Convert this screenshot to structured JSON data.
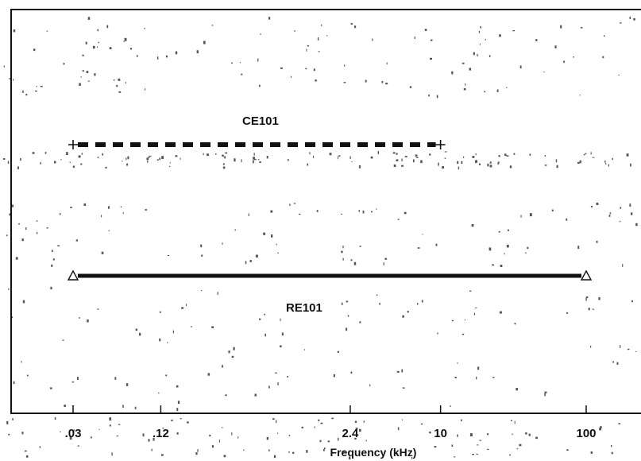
{
  "chart_data": {
    "type": "line",
    "xlabel": "Frequency (kHz)",
    "ylabel": "",
    "xscale": "log",
    "xlim": [
      0.03,
      100
    ],
    "x_ticks": [
      {
        "value": 0.03,
        "label": ".03"
      },
      {
        "value": 0.12,
        "label": ".12"
      },
      {
        "value": 2.4,
        "label": "2.4"
      },
      {
        "value": 10,
        "label": "10"
      },
      {
        "value": 100,
        "label": "100"
      }
    ],
    "grid": false,
    "series": [
      {
        "name": "CE101",
        "x": [
          0.03,
          10
        ],
        "style": "dashed",
        "marker": "plus",
        "color": "#111111"
      },
      {
        "name": "RE101",
        "x": [
          0.03,
          100
        ],
        "style": "solid",
        "marker": "triangle",
        "color": "#111111"
      }
    ]
  }
}
